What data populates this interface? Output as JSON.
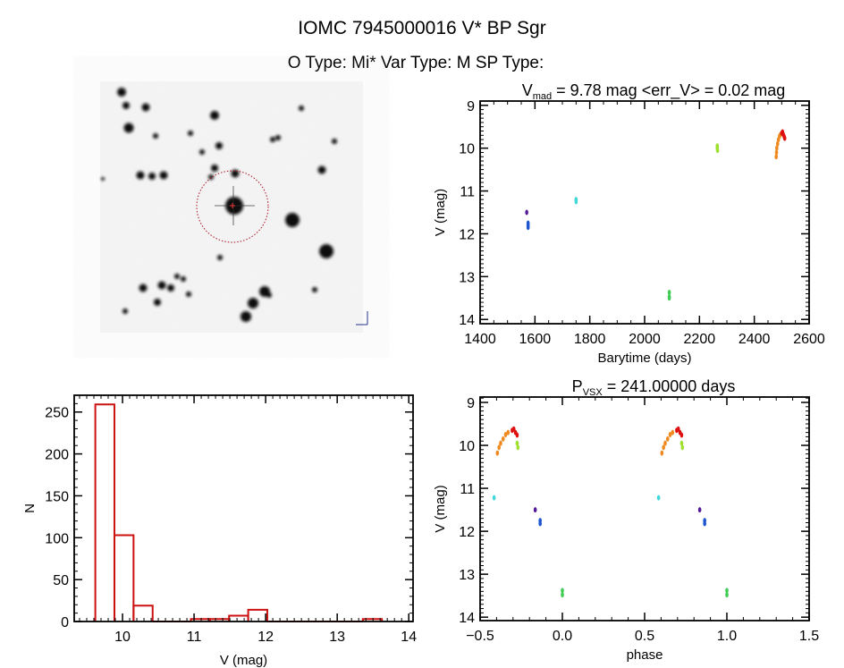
{
  "header": {
    "title": "IOMC 7945000016   V* BP Sgr",
    "subtitle": "O Type: Mi*  Var Type: M  SP Type:"
  },
  "colors": {
    "axis": "#000000",
    "hist": "#cc1111",
    "circle": "#aa1122"
  },
  "chart_data": [
    {
      "id": "lightcurve",
      "type": "scatter",
      "title_main": "V",
      "title_sub": "mad",
      "title_rest": " = 9.78 mag <err_V> = 0.02 mag",
      "xlabel": "Barytime (days)",
      "ylabel": "V (mag)",
      "xlim": [
        1400,
        2600
      ],
      "ylim": [
        8.9,
        14.1
      ],
      "y_inverted": true,
      "xticks": [
        1400,
        1600,
        1800,
        2000,
        2200,
        2400,
        2600
      ],
      "yticks": [
        9,
        10,
        11,
        12,
        13,
        14
      ],
      "series": [
        {
          "name": "purple",
          "color": "#551a99",
          "points": [
            [
              1570,
              11.5
            ]
          ]
        },
        {
          "name": "blue",
          "color": "#1f55d0",
          "points": [
            [
              1575,
              11.75
            ],
            [
              1575,
              11.8
            ],
            [
              1575,
              11.85
            ]
          ]
        },
        {
          "name": "cyan",
          "color": "#40d8d8",
          "points": [
            [
              1750,
              11.2
            ],
            [
              1750,
              11.25
            ]
          ]
        },
        {
          "name": "green",
          "color": "#40cc55",
          "points": [
            [
              2090,
              13.37
            ],
            [
              2090,
              13.47
            ],
            [
              2090,
              13.5
            ]
          ]
        },
        {
          "name": "yellowgreen",
          "color": "#a0e030",
          "points": [
            [
              2265,
              9.95
            ],
            [
              2265,
              10.0
            ],
            [
              2266,
              10.05
            ]
          ]
        },
        {
          "name": "orange",
          "color": "#ee8a20",
          "points": [
            [
              2480,
              10.2
            ],
            [
              2481,
              10.1
            ],
            [
              2482,
              10.0
            ],
            [
              2485,
              9.9
            ],
            [
              2488,
              9.8
            ],
            [
              2492,
              9.72
            ],
            [
              2496,
              9.68
            ]
          ]
        },
        {
          "name": "red",
          "color": "#dd1111",
          "points": [
            [
              2500,
              9.65
            ],
            [
              2503,
              9.62
            ],
            [
              2506,
              9.68
            ],
            [
              2509,
              9.73
            ],
            [
              2511,
              9.77
            ]
          ]
        }
      ]
    },
    {
      "id": "phased",
      "type": "scatter",
      "title_main": "P",
      "title_sub": "VSX",
      "title_rest": " = 241.00000 days",
      "xlabel": "phase",
      "ylabel": "V (mag)",
      "xlim": [
        -0.5,
        1.5
      ],
      "ylim": [
        8.875,
        14.08
      ],
      "y_inverted": true,
      "xticks": [
        -0.5,
        0.0,
        0.5,
        1.0,
        1.5
      ],
      "xtick_labels": [
        "−0.5",
        "0.0",
        "0.5",
        "1.0",
        "1.5"
      ],
      "yticks": [
        9,
        10,
        11,
        12,
        13,
        14
      ],
      "series": [
        {
          "name": "cyan",
          "color": "#40d8d8",
          "points": [
            [
              -0.415,
              11.22
            ],
            [
              0.585,
              11.22
            ]
          ]
        },
        {
          "name": "purple",
          "color": "#551a99",
          "points": [
            [
              -0.165,
              11.5
            ],
            [
              0.835,
              11.5
            ]
          ]
        },
        {
          "name": "blue",
          "color": "#1f55d0",
          "points": [
            [
              -0.135,
              11.75
            ],
            [
              -0.135,
              11.82
            ],
            [
              0.865,
              11.75
            ],
            [
              0.865,
              11.82
            ]
          ]
        },
        {
          "name": "green",
          "color": "#40cc55",
          "points": [
            [
              0.0,
              13.38
            ],
            [
              0.0,
              13.48
            ],
            [
              1.0,
              13.38
            ],
            [
              1.0,
              13.48
            ]
          ]
        },
        {
          "name": "yellowgreen",
          "color": "#a0e030",
          "points": [
            [
              -0.275,
              9.95
            ],
            [
              -0.27,
              10.05
            ],
            [
              0.725,
              9.95
            ],
            [
              0.73,
              10.05
            ]
          ]
        },
        {
          "name": "orange",
          "color": "#ee8a20",
          "points": [
            [
              -0.395,
              10.18
            ],
            [
              -0.385,
              10.05
            ],
            [
              -0.375,
              9.95
            ],
            [
              -0.36,
              9.85
            ],
            [
              -0.345,
              9.75
            ],
            [
              -0.33,
              9.7
            ],
            [
              0.605,
              10.18
            ],
            [
              0.615,
              10.05
            ],
            [
              0.625,
              9.95
            ],
            [
              0.64,
              9.85
            ],
            [
              0.655,
              9.75
            ],
            [
              0.67,
              9.7
            ]
          ]
        },
        {
          "name": "red",
          "color": "#dd1111",
          "points": [
            [
              -0.305,
              9.65
            ],
            [
              -0.295,
              9.62
            ],
            [
              -0.285,
              9.7
            ],
            [
              -0.275,
              9.76
            ],
            [
              0.695,
              9.65
            ],
            [
              0.705,
              9.62
            ],
            [
              0.715,
              9.7
            ],
            [
              0.725,
              9.76
            ]
          ]
        }
      ]
    },
    {
      "id": "histogram",
      "type": "bar",
      "xlabel": "V (mag)",
      "ylabel": "N",
      "xlim": [
        9.325,
        14.06
      ],
      "ylim": [
        0,
        270
      ],
      "xticks": [
        10,
        11,
        12,
        13,
        14
      ],
      "yticks": [
        0,
        50,
        100,
        150,
        200,
        250
      ],
      "bin_start": 9.62,
      "bin_width": 0.267,
      "values": [
        259,
        103,
        19,
        0,
        0,
        3,
        3,
        7,
        14,
        0,
        0,
        0,
        0,
        0,
        3
      ]
    }
  ]
}
